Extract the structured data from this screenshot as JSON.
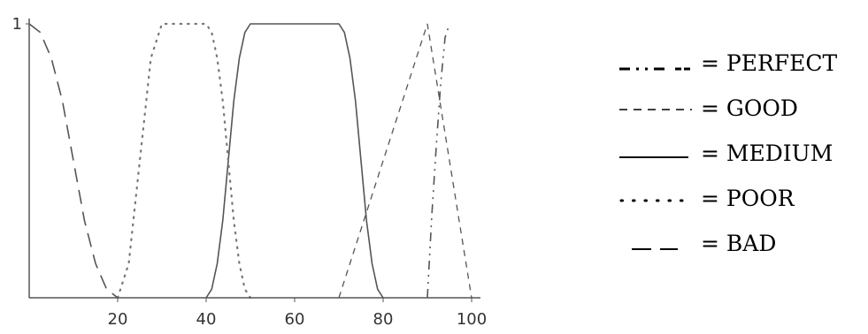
{
  "chart_data": {
    "type": "line",
    "title": "",
    "xlabel": "",
    "ylabel": "",
    "xlim": [
      0,
      100
    ],
    "ylim": [
      0,
      1
    ],
    "x_ticks": [
      "20",
      "40",
      "60",
      "80",
      "100"
    ],
    "y_ticks": [
      "1"
    ],
    "grid": false,
    "legend_placement": "right",
    "series": [
      {
        "name": "PERFECT",
        "legend_label": "= PERFECT",
        "dash": "perfect",
        "color": "#555555",
        "points": [
          [
            90,
            0
          ],
          [
            91,
            0.3
          ],
          [
            92,
            0.55
          ],
          [
            93,
            0.78
          ],
          [
            94,
            0.95
          ],
          [
            95,
            1.0
          ]
        ]
      },
      {
        "name": "GOOD",
        "legend_label": "= GOOD",
        "dash": "good",
        "color": "#555555",
        "points": [
          [
            70,
            0
          ],
          [
            90,
            1.0
          ],
          [
            100,
            0
          ]
        ]
      },
      {
        "name": "MEDIUM",
        "legend_label": "= MEDIUM",
        "dash": "medium",
        "color": "#555555",
        "points": [
          [
            40,
            0
          ],
          [
            41.25,
            0.0313
          ],
          [
            42.5,
            0.125
          ],
          [
            43.75,
            0.2813
          ],
          [
            45,
            0.5
          ],
          [
            46.25,
            0.7188
          ],
          [
            47.5,
            0.875
          ],
          [
            48.75,
            0.9688
          ],
          [
            50,
            1.0
          ],
          [
            70,
            1.0
          ],
          [
            71.25,
            0.9688
          ],
          [
            72.5,
            0.875
          ],
          [
            73.75,
            0.7188
          ],
          [
            75,
            0.5
          ],
          [
            76.25,
            0.2813
          ],
          [
            77.5,
            0.125
          ],
          [
            78.75,
            0.0313
          ],
          [
            80,
            0
          ]
        ]
      },
      {
        "name": "POOR",
        "legend_label": "= POOR",
        "dash": "poor",
        "color": "#777777",
        "points": [
          [
            20,
            0
          ],
          [
            22.5,
            0.125
          ],
          [
            25,
            0.5
          ],
          [
            27.5,
            0.875
          ],
          [
            30,
            1.0
          ],
          [
            40,
            1.0
          ],
          [
            41.25,
            0.9688
          ],
          [
            42.5,
            0.875
          ],
          [
            43.75,
            0.7188
          ],
          [
            45,
            0.5
          ],
          [
            46.25,
            0.2813
          ],
          [
            47.5,
            0.125
          ],
          [
            48.75,
            0.0313
          ],
          [
            50,
            0
          ]
        ]
      },
      {
        "name": "BAD",
        "legend_label": "= BAD",
        "dash": "bad",
        "color": "#555555",
        "points": [
          [
            0,
            1.0
          ],
          [
            2.5,
            0.9688
          ],
          [
            5,
            0.875
          ],
          [
            7.5,
            0.7188
          ],
          [
            10,
            0.5
          ],
          [
            12.5,
            0.2813
          ],
          [
            15,
            0.125
          ],
          [
            17.5,
            0.0313
          ],
          [
            20,
            0
          ]
        ]
      }
    ]
  }
}
